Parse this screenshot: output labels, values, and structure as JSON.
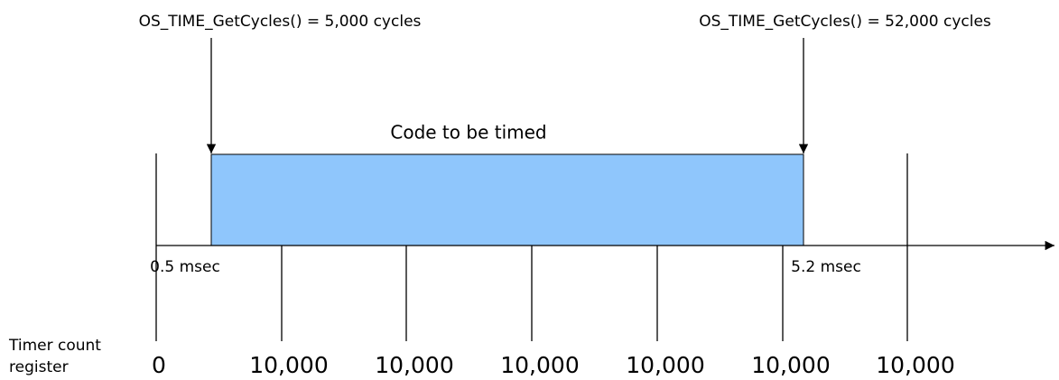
{
  "annotations": [
    "OS_TIME_GetCycles() = 5,000 cycles",
    "OS_TIME_GetCycles() = 52,000 cycles"
  ],
  "block_label": "Code to be timed",
  "time_labels": [
    "0.5 msec",
    "5.2 msec"
  ],
  "register_label": [
    "Timer count",
    "register"
  ],
  "counter_labels": [
    "0",
    "10,000",
    "10,000",
    "10,000",
    "10,000",
    "10,000",
    "10,000"
  ]
}
